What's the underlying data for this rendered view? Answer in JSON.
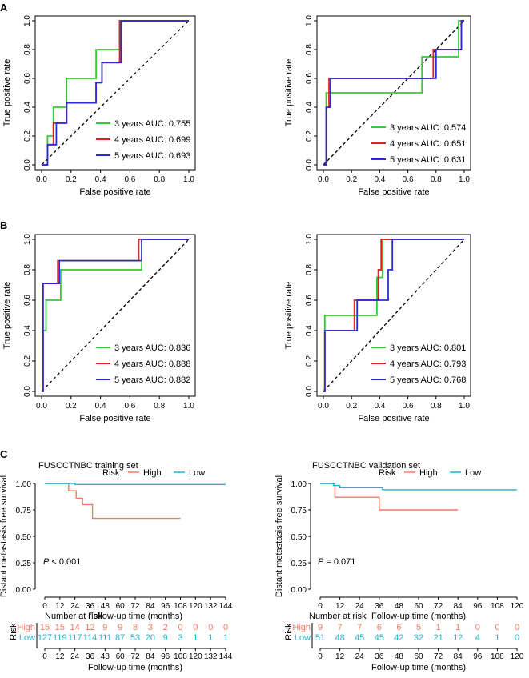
{
  "panels": {
    "A": {
      "label": "A"
    },
    "B": {
      "label": "B"
    },
    "C": {
      "label": "C"
    }
  },
  "colors": {
    "green": "#33cc33",
    "red": "#e02020",
    "blue": "#2b2bd6",
    "km_high": "#f07a64",
    "km_low": "#1fb3c9",
    "diag": "#000000"
  },
  "chart_data": [
    {
      "id": "A_train",
      "type": "line",
      "title": "FUSCCTNBC training set",
      "xlabel": "False positive rate",
      "ylabel": "True positive rate",
      "xlim": [
        0,
        1
      ],
      "ylim": [
        0,
        1
      ],
      "ticks": [
        "0.0",
        "0.2",
        "0.4",
        "0.6",
        "0.8",
        "1.0"
      ],
      "legend": [
        "3 years AUC: 0.755",
        "4 years AUC: 0.699",
        "5 years AUC: 0.693"
      ],
      "series": [
        {
          "name": "3 years",
          "color": "green",
          "x": [
            0,
            0.04,
            0.04,
            0.08,
            0.08,
            0.17,
            0.17,
            0.37,
            0.37,
            0.44,
            0.44,
            0.53,
            0.53,
            1.0
          ],
          "y": [
            0,
            0,
            0.2,
            0.2,
            0.4,
            0.4,
            0.6,
            0.6,
            0.8,
            0.8,
            0.8,
            0.8,
            1.0,
            1.0
          ]
        },
        {
          "name": "4 years",
          "color": "red",
          "x": [
            0,
            0.04,
            0.04,
            0.08,
            0.08,
            0.1,
            0.1,
            0.17,
            0.17,
            0.37,
            0.37,
            0.41,
            0.41,
            0.53,
            0.53,
            1.0
          ],
          "y": [
            0,
            0,
            0.14,
            0.14,
            0.29,
            0.29,
            0.29,
            0.29,
            0.43,
            0.43,
            0.57,
            0.57,
            0.71,
            0.71,
            1.0,
            1.0
          ]
        },
        {
          "name": "5 years",
          "color": "blue",
          "x": [
            0,
            0.04,
            0.04,
            0.08,
            0.08,
            0.1,
            0.1,
            0.17,
            0.17,
            0.37,
            0.37,
            0.41,
            0.41,
            0.54,
            0.54,
            1.0
          ],
          "y": [
            0,
            0,
            0.14,
            0.14,
            0.14,
            0.14,
            0.29,
            0.29,
            0.43,
            0.43,
            0.57,
            0.57,
            0.71,
            0.71,
            1.0,
            1.0
          ]
        }
      ]
    },
    {
      "id": "A_val",
      "type": "line",
      "title": "FUSCCTNBC validation set",
      "xlabel": "False positive rate",
      "ylabel": "True positive rate",
      "xlim": [
        0,
        1
      ],
      "ylim": [
        0,
        1
      ],
      "ticks": [
        "0.0",
        "0.2",
        "0.4",
        "0.6",
        "0.8",
        "1.0"
      ],
      "legend": [
        "3 years AUC: 0.574",
        "4 years AUC: 0.651",
        "5 years AUC: 0.631"
      ],
      "series": [
        {
          "name": "3 years",
          "color": "green",
          "x": [
            0,
            0.02,
            0.02,
            0.7,
            0.7,
            0.75,
            0.75,
            0.96,
            0.96,
            1.0
          ],
          "y": [
            0,
            0,
            0.5,
            0.5,
            0.75,
            0.75,
            0.75,
            0.75,
            1.0,
            1.0
          ]
        },
        {
          "name": "4 years",
          "color": "red",
          "x": [
            0,
            0.02,
            0.02,
            0.04,
            0.04,
            0.72,
            0.72,
            0.78,
            0.78,
            0.98,
            0.98,
            1.0
          ],
          "y": [
            0,
            0,
            0.4,
            0.4,
            0.6,
            0.6,
            0.6,
            0.6,
            0.8,
            0.8,
            1.0,
            1.0
          ]
        },
        {
          "name": "5 years",
          "color": "blue",
          "x": [
            0,
            0.02,
            0.02,
            0.05,
            0.05,
            0.76,
            0.76,
            0.8,
            0.8,
            0.98,
            0.98,
            1.0
          ],
          "y": [
            0,
            0,
            0.4,
            0.4,
            0.6,
            0.6,
            0.6,
            0.6,
            0.8,
            0.8,
            1.0,
            1.0
          ]
        }
      ]
    },
    {
      "id": "B_train",
      "type": "line",
      "title": "FUSCCTNBC training set",
      "xlabel": "False positive rate",
      "ylabel": "True positive rate",
      "xlim": [
        0,
        1
      ],
      "ylim": [
        0,
        1
      ],
      "ticks": [
        "0.0",
        "0.2",
        "0.4",
        "0.6",
        "0.8",
        "1.0"
      ],
      "legend": [
        "3 years AUC: 0.836",
        "4 years AUC: 0.888",
        "5 years AUC: 0.882"
      ],
      "series": [
        {
          "name": "3 years",
          "color": "green",
          "x": [
            0,
            0.01,
            0.01,
            0.03,
            0.03,
            0.13,
            0.13,
            0.68,
            0.68,
            1.0
          ],
          "y": [
            0,
            0,
            0.4,
            0.4,
            0.6,
            0.6,
            0.8,
            0.8,
            1.0,
            1.0
          ]
        },
        {
          "name": "4 years",
          "color": "red",
          "x": [
            0,
            0.01,
            0.01,
            0.11,
            0.11,
            0.66,
            0.66,
            1.0
          ],
          "y": [
            0,
            0,
            0.71,
            0.71,
            0.86,
            0.86,
            1.0,
            1.0
          ]
        },
        {
          "name": "5 years",
          "color": "blue",
          "x": [
            0,
            0.01,
            0.01,
            0.12,
            0.12,
            0.68,
            0.68,
            1.0
          ],
          "y": [
            0,
            0,
            0.71,
            0.71,
            0.86,
            0.86,
            1.0,
            1.0
          ]
        }
      ]
    },
    {
      "id": "B_val",
      "type": "line",
      "title": "FUSCCTNBC validation set",
      "xlabel": "False positive rate",
      "ylabel": "True positive rate",
      "xlim": [
        0,
        1
      ],
      "ylim": [
        0,
        1
      ],
      "ticks": [
        "0.0",
        "0.2",
        "0.4",
        "0.6",
        "0.8",
        "1.0"
      ],
      "legend": [
        "3 years AUC: 0.801",
        "4 years AUC: 0.793",
        "5 years AUC: 0.768"
      ],
      "series": [
        {
          "name": "3 years",
          "color": "green",
          "x": [
            0,
            0.01,
            0.01,
            0.38,
            0.38,
            0.42,
            0.42,
            1.0
          ],
          "y": [
            0,
            0,
            0.5,
            0.5,
            0.75,
            0.75,
            1.0,
            1.0
          ]
        },
        {
          "name": "4 years",
          "color": "red",
          "x": [
            0,
            0.01,
            0.01,
            0.22,
            0.22,
            0.39,
            0.39,
            0.41,
            0.41,
            0.46,
            0.46,
            1.0
          ],
          "y": [
            0,
            0,
            0.4,
            0.4,
            0.6,
            0.6,
            0.8,
            0.8,
            1.0,
            1.0,
            1.0,
            1.0
          ]
        },
        {
          "name": "5 years",
          "color": "blue",
          "x": [
            0,
            0.01,
            0.01,
            0.24,
            0.24,
            0.43,
            0.43,
            0.46,
            0.46,
            0.49,
            0.49,
            1.0
          ],
          "y": [
            0,
            0,
            0.4,
            0.4,
            0.6,
            0.6,
            0.6,
            0.6,
            0.8,
            0.8,
            1.0,
            1.0
          ]
        }
      ]
    },
    {
      "id": "C_train",
      "type": "line",
      "subtype": "kaplan-meier",
      "title": "FUSCCTNBC training set",
      "xlabel": "Follow-up time (months)",
      "ylabel": "Distant metastasis free survival",
      "xlim": [
        0,
        144
      ],
      "ylim": [
        0,
        1
      ],
      "xticks": [
        0,
        12,
        24,
        36,
        48,
        60,
        72,
        84,
        96,
        108,
        120,
        132,
        144
      ],
      "xtick_labels": [
        "0",
        "12",
        "24",
        "36",
        "48",
        "60",
        "72",
        "84",
        "96",
        "108",
        "120",
        "132",
        "144"
      ],
      "yticks": [
        0,
        0.25,
        0.5,
        0.75,
        1.0
      ],
      "ytick_labels": [
        "0.00",
        "0.25",
        "0.50",
        "0.75",
        "1.00"
      ],
      "legend_title": "Risk",
      "legend": [
        "High",
        "Low"
      ],
      "pvalue": "< 0.001",
      "series": [
        {
          "name": "High",
          "color": "km_high",
          "x": [
            0,
            19,
            19,
            25,
            25,
            30,
            30,
            38,
            38,
            108
          ],
          "y": [
            1,
            1,
            0.93,
            0.93,
            0.86,
            0.86,
            0.8,
            0.8,
            0.67,
            0.67
          ]
        },
        {
          "name": "Low",
          "color": "km_low",
          "x": [
            0,
            24,
            24,
            144
          ],
          "y": [
            1,
            1,
            0.99,
            0.99
          ]
        }
      ],
      "risk_table": {
        "title": "Number at risk",
        "ylabel": "Risk",
        "rows": [
          {
            "label": "High",
            "color": "km_high",
            "values": [
              "15",
              "15",
              "14",
              "12",
              "9",
              "9",
              "8",
              "3",
              "2",
              "0",
              "0",
              "0",
              "0"
            ]
          },
          {
            "label": "Low",
            "color": "km_low",
            "values": [
              "127",
              "119",
              "117",
              "114",
              "111",
              "87",
              "53",
              "20",
              "9",
              "3",
              "1",
              "1",
              "1"
            ]
          }
        ]
      }
    },
    {
      "id": "C_val",
      "type": "line",
      "subtype": "kaplan-meier",
      "title": "FUSCCTNBC validation set",
      "xlabel": "Follow-up time (months)",
      "ylabel": "Distant metastasis free survival",
      "xlim": [
        0,
        120
      ],
      "ylim": [
        0,
        1
      ],
      "xticks": [
        0,
        12,
        24,
        36,
        48,
        60,
        72,
        84,
        96,
        108,
        120
      ],
      "xtick_labels": [
        "0",
        "12",
        "24",
        "36",
        "48",
        "60",
        "72",
        "84",
        "96",
        "108",
        "120"
      ],
      "yticks": [
        0,
        0.25,
        0.5,
        0.75,
        1.0
      ],
      "ytick_labels": [
        "0.00",
        "0.25",
        "0.50",
        "0.75",
        "1.00"
      ],
      "legend_title": "Risk",
      "legend": [
        "High",
        "Low"
      ],
      "pvalue": "= 0.071",
      "series": [
        {
          "name": "High",
          "color": "km_high",
          "x": [
            0,
            9,
            9,
            36,
            36,
            84
          ],
          "y": [
            1,
            1,
            0.87,
            0.87,
            0.75,
            0.75
          ]
        },
        {
          "name": "Low",
          "color": "km_low",
          "x": [
            0,
            8,
            8,
            12,
            12,
            38,
            38,
            120
          ],
          "y": [
            1,
            1,
            0.98,
            0.98,
            0.96,
            0.96,
            0.94,
            0.94
          ]
        }
      ],
      "risk_table": {
        "title": "Number at risk",
        "ylabel": "Risk",
        "rows": [
          {
            "label": "High",
            "color": "km_high",
            "values": [
              "9",
              "7",
              "7",
              "6",
              "6",
              "5",
              "1",
              "1",
              "0",
              "0",
              "0"
            ]
          },
          {
            "label": "Low",
            "color": "km_low",
            "values": [
              "51",
              "48",
              "45",
              "45",
              "42",
              "32",
              "21",
              "12",
              "4",
              "1",
              "0"
            ]
          }
        ]
      }
    }
  ]
}
